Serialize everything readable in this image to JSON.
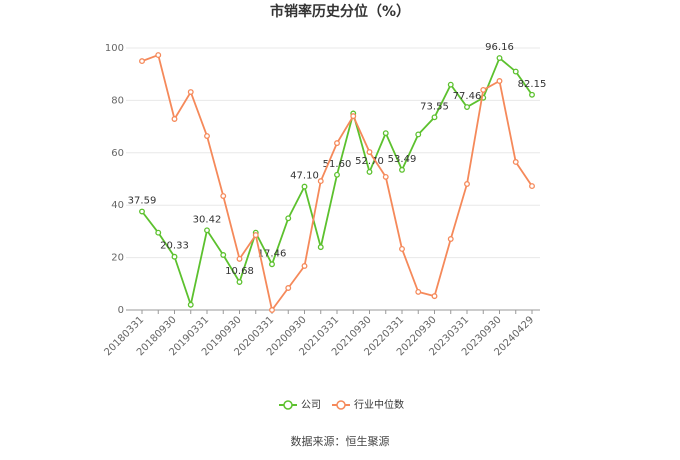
{
  "chart_data": {
    "type": "line",
    "title": "市销率历史分位（%）",
    "source": "数据来源：恒生聚源",
    "categories": [
      "20180331",
      null,
      "20180930",
      null,
      "20190331",
      null,
      "20190930",
      null,
      "20200331",
      null,
      "20200930",
      null,
      "20210331",
      null,
      "20210930",
      null,
      "20220331",
      null,
      "20220930",
      null,
      "20230331",
      null,
      "20230930",
      null,
      "20240429"
    ],
    "series": [
      {
        "name": "公司",
        "color": "#5cc12e",
        "values": [
          37.59,
          29.5,
          20.33,
          2,
          30.42,
          21,
          10.68,
          29.5,
          17.46,
          35,
          47.1,
          24,
          51.6,
          75,
          52.7,
          67.5,
          53.49,
          67,
          73.55,
          86,
          77.46,
          81,
          96.16,
          91,
          82.15
        ],
        "value_labels": [
          "37.59",
          null,
          "20.33",
          null,
          "30.42",
          null,
          "10.68",
          null,
          "17.46",
          null,
          "47.10",
          null,
          "51.60",
          null,
          "52.70",
          null,
          "53.49",
          null,
          "73.55",
          null,
          "77.46",
          null,
          "96.16",
          null,
          "82.15"
        ]
      },
      {
        "name": "行业中位数",
        "color": "#f5895a",
        "values": [
          95,
          97.3,
          72.9,
          83.2,
          66.4,
          43.5,
          19.5,
          28.6,
          0,
          8.4,
          16.8,
          49.2,
          63.7,
          74,
          60.3,
          50.8,
          23.3,
          6.9,
          5.3,
          27.1,
          48.1,
          84,
          87.4,
          56.5,
          47.3
        ]
      }
    ],
    "ylim": [
      0,
      100
    ],
    "yticks": [
      0,
      20,
      40,
      60,
      80,
      100
    ],
    "grid": true
  }
}
